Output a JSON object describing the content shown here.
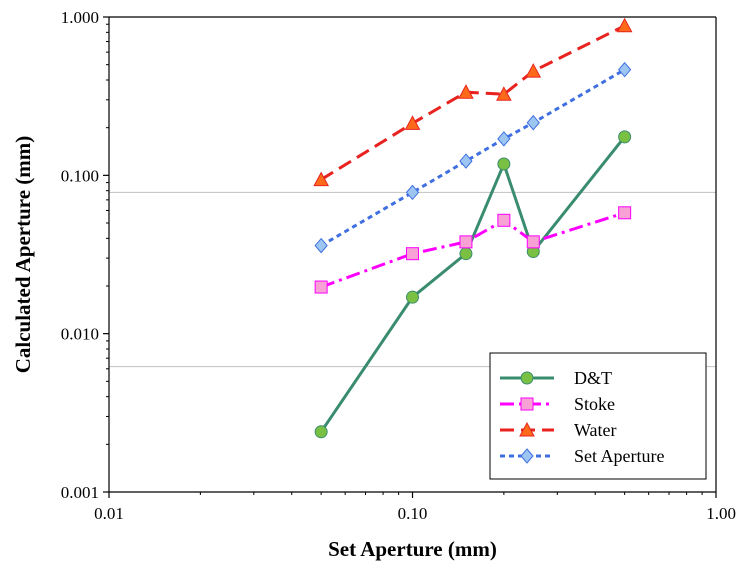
{
  "chart_data": {
    "type": "line",
    "title": "",
    "xlabel": "Set Aperture (mm)",
    "ylabel": "Calculated Aperture (mm)",
    "x_scale": "log",
    "y_scale": "log",
    "xlim": [
      0.01,
      1.0
    ],
    "ylim": [
      0.001,
      1.0
    ],
    "x_ticks": [
      0.01,
      0.1,
      1.0
    ],
    "x_tick_labels": [
      "0.01",
      "0.10",
      "1.00"
    ],
    "y_ticks": [
      0.001,
      0.01,
      0.1,
      1.0
    ],
    "y_tick_labels": [
      "0.001",
      "0.010",
      "0.100",
      "1.000"
    ],
    "hlines": [
      0.078,
      0.0062
    ],
    "legend_position": "bottom-right",
    "x": [
      0.05,
      0.1,
      0.15,
      0.2,
      0.25,
      0.5
    ],
    "series": [
      {
        "name": "D&T",
        "values": [
          0.0024,
          0.017,
          0.032,
          0.118,
          0.033,
          0.175
        ],
        "color": "#3a8c6e",
        "marker_color": "#7ac143",
        "marker": "circle",
        "dash": "solid"
      },
      {
        "name": "Stoke",
        "values": [
          0.0197,
          0.032,
          0.038,
          0.052,
          0.038,
          0.058
        ],
        "color": "#ff00ff",
        "marker_color": "#f7a1d4",
        "marker": "square",
        "dash": "dashdot"
      },
      {
        "name": "Water",
        "values": [
          0.094,
          0.213,
          0.335,
          0.325,
          0.455,
          0.88
        ],
        "color": "#e8231f",
        "marker_color": "#ff6a1a",
        "marker": "triangle",
        "dash": "dash"
      },
      {
        "name": "Set Aperture",
        "values": [
          0.036,
          0.078,
          0.123,
          0.17,
          0.215,
          0.465
        ],
        "color": "#3f6fe0",
        "marker_color": "#9cc5f2",
        "marker": "diamond",
        "dash": "dot"
      }
    ]
  }
}
